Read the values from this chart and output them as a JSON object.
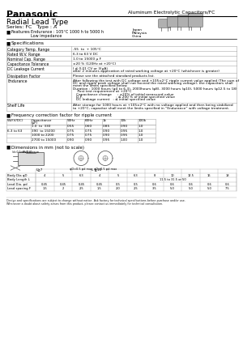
{
  "title_company": "Panasonic",
  "title_product": "Aluminum Electrolytic Capacitors/FC",
  "subtitle": "Radial Lead Type",
  "series_line": "Series: FC   Type : A",
  "features_text1": "Endurance : 105°C 1000 h to 5000 h",
  "features_text2": "Low impedance",
  "origin_text": [
    "Japan",
    "Malaysia",
    "China"
  ],
  "spec_title": "Specifications",
  "specs": [
    [
      "Category Temp. Range",
      "-55  to  + 105°C",
      6
    ],
    [
      "Rated W.V. Range",
      "6.3 to 63 V DC",
      6
    ],
    [
      "Nominal Cap. Range",
      "1.0 to 15000 µ F",
      6
    ],
    [
      "Capacitance Tolerance",
      "±20 % (120Hz at +20°C)",
      6
    ],
    [
      "DC Leakage Current",
      "I ≤ 0.01 CV or 3(µA)\nafter 2 minutes application of rated working voltage at +20°C (whichever is greater)",
      9
    ],
    [
      "Dissipation Factor",
      "Please see the attached standard products list.",
      6
    ],
    [
      "Endurance",
      "After following the test with DC voltage and +105±2°C ripple current value applied (The sum of\nDC and ripple peak voltage shall not exceed the rated working voltage), the capacitors shall\nmeet the limits specified below.\nDuration : 1000 hours (φ4 to 6.3), 2000hours (φ8), 3000 hours (φ10), 5000 hours (φ12.5 to 18)\n    Post test requirement at +20°C\n   Capacitance change     : ±20% of initial measured value\n   D.F.                              : ≤ 200 % of initial specified value\n   DC leakage current   : ≤ initial specified value",
      31
    ],
    [
      "Shelf Life",
      "After storage for 1000 hours at +105±2°C with no voltage applied and then being stabilized\nto +20°C, capacitor shall meet the limits specified in “Endurance” with voltage treatment.",
      10
    ]
  ],
  "freq_title": "Frequency correction factor for ripple current",
  "freq_col_labels": [
    "WV(V/DC)",
    "Capacitance\n(µF)",
    "50Hz",
    "60Hz",
    "1k",
    "10k",
    "100k"
  ],
  "freq_wv_label": "6.3 to 63",
  "freq_rows": [
    [
      "",
      "1.0  to  330",
      "0.55",
      "0.60",
      "0.85",
      "0.90",
      "1.0"
    ],
    [
      "6.3 to 63",
      "390  to 15000",
      "0.75",
      "0.75",
      "0.90",
      "0.95",
      "1.0"
    ],
    [
      "",
      "1000 to 2200",
      "0.75",
      "0.75",
      "0.90",
      "0.95",
      "1.0"
    ],
    [
      "",
      "2700 to 15000",
      "0.90",
      "0.90",
      "0.95",
      "1.00",
      "1.0"
    ]
  ],
  "dim_title": "Dimensions in mm (not to scale)",
  "dim_row_labels": [
    "Body Dia φD",
    "Body Length L",
    "Lead Dia. φd",
    "Lead spacing F"
  ],
  "dim_hdr_group1": "L≧7",
  "dim_hdr_group2": "L ≧10",
  "dim_data": {
    "phiD": [
      "4",
      "5",
      "6.3",
      "4",
      "5",
      "6.3",
      "8",
      "10",
      "12.5",
      "16",
      "18"
    ],
    "L": [
      "",
      "",
      "",
      "",
      "",
      "",
      "",
      "11.5 to 31.5 or 50",
      "",
      "",
      ""
    ],
    "phid": [
      "0.45",
      "0.45",
      "0.45",
      "0.45",
      "0.5",
      "0.5",
      "0.6",
      "0.6",
      "0.6",
      "0.6",
      "0.6"
    ],
    "F": [
      "1.5",
      "2",
      "2.5",
      "1.5",
      "2.0",
      "2.5",
      "3.5",
      "5.0",
      "5.0",
      "5.0",
      "7.5"
    ]
  },
  "footer1": "Design and specifications are subject to change without notice. Ask factory for technical specifications before purchase and/or use.",
  "footer2": "Whenever a doubt about safety arises from this product, please contact us immediately for technical consultation.",
  "bg_color": "#ffffff"
}
